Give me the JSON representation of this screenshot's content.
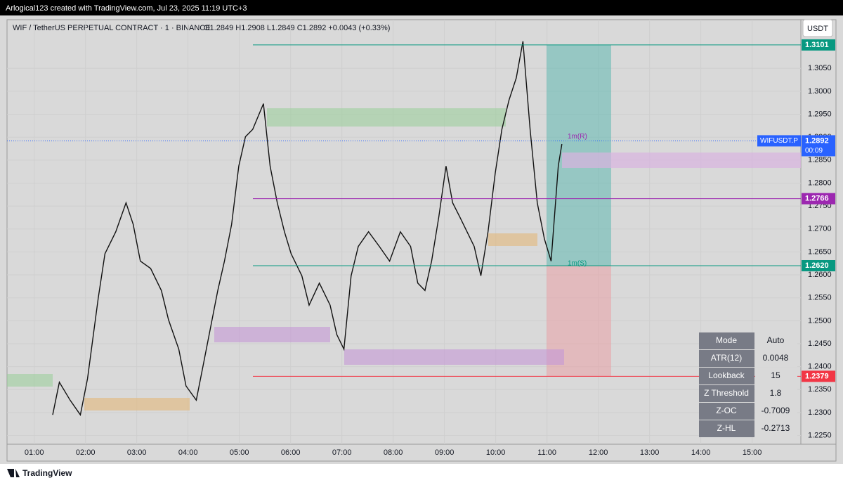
{
  "header": {
    "caption": "Arlogical123 created with TradingView.com, Jul 23, 2025 11:19 UTC+3"
  },
  "legend": {
    "symbol": "WIF / TetherUS PERPETUAL CONTRACT · 1 · BINANCE",
    "ohlc": "O1.2849 H1.2908 L1.2849 C1.2892 +0.0043 (+0.33%)"
  },
  "currency_button": "USDT",
  "chart_data": {
    "type": "line",
    "color": "#111111",
    "x": [
      1.36,
      1.49,
      1.7,
      1.9,
      2.04,
      2.25,
      2.38,
      2.59,
      2.79,
      2.93,
      3.07,
      3.27,
      3.48,
      3.62,
      3.82,
      3.96,
      4.16,
      4.3,
      4.44,
      4.58,
      4.71,
      4.85,
      4.99,
      5.12,
      5.26,
      5.47,
      5.6,
      5.74,
      5.88,
      6.01,
      6.22,
      6.36,
      6.56,
      6.77,
      6.9,
      7.04,
      7.18,
      7.32,
      7.52,
      7.73,
      7.93,
      8.14,
      8.34,
      8.48,
      8.62,
      8.75,
      8.89,
      9.03,
      9.16,
      9.3,
      9.44,
      9.58,
      9.71,
      9.85,
      9.99,
      10.12,
      10.26,
      10.4,
      10.53,
      10.67,
      10.81,
      10.95,
      11.08,
      11.22,
      11.29
    ],
    "values": [
      1.2295,
      1.2366,
      1.2327,
      1.2295,
      1.2374,
      1.255,
      1.2646,
      1.2694,
      1.2757,
      1.271,
      1.263,
      1.2614,
      1.2566,
      1.2502,
      1.2438,
      1.2358,
      1.2327,
      1.2406,
      1.2486,
      1.2566,
      1.263,
      1.271,
      1.2837,
      1.2901,
      1.2917,
      1.2973,
      1.2837,
      1.2757,
      1.2694,
      1.2646,
      1.2598,
      1.2534,
      1.2582,
      1.2534,
      1.247,
      1.2438,
      1.2598,
      1.2662,
      1.2694,
      1.2662,
      1.263,
      1.2694,
      1.2662,
      1.2582,
      1.2566,
      1.263,
      1.2726,
      1.2837,
      1.2757,
      1.2726,
      1.2694,
      1.2662,
      1.2598,
      1.2694,
      1.2821,
      1.2917,
      1.2981,
      1.3029,
      1.3109,
      1.2917,
      1.2757,
      1.2678,
      1.263,
      1.2837,
      1.2885
    ],
    "xlim": [
      0.47,
      15.95
    ],
    "ylim": [
      1.2231,
      1.3156
    ],
    "xticks": [
      {
        "value": 1,
        "label": "01:00"
      },
      {
        "value": 2,
        "label": "02:00"
      },
      {
        "value": 3,
        "label": "03:00"
      },
      {
        "value": 4,
        "label": "04:00"
      },
      {
        "value": 5,
        "label": "05:00"
      },
      {
        "value": 6,
        "label": "06:00"
      },
      {
        "value": 7,
        "label": "07:00"
      },
      {
        "value": 8,
        "label": "08:00"
      },
      {
        "value": 9,
        "label": "09:00"
      },
      {
        "value": 10,
        "label": "10:00"
      },
      {
        "value": 11,
        "label": "11:00"
      },
      {
        "value": 12,
        "label": "12:00"
      },
      {
        "value": 13,
        "label": "13:00"
      },
      {
        "value": 14,
        "label": "14:00"
      },
      {
        "value": 15,
        "label": "15:00"
      }
    ],
    "yticks": [
      {
        "value": 1.225,
        "label": "1.2250"
      },
      {
        "value": 1.23,
        "label": "1.2300"
      },
      {
        "value": 1.235,
        "label": "1.2350"
      },
      {
        "value": 1.24,
        "label": "1.2400"
      },
      {
        "value": 1.245,
        "label": "1.2450"
      },
      {
        "value": 1.25,
        "label": "1.2500"
      },
      {
        "value": 1.255,
        "label": "1.2550"
      },
      {
        "value": 1.26,
        "label": "1.2600"
      },
      {
        "value": 1.265,
        "label": "1.2650"
      },
      {
        "value": 1.27,
        "label": "1.2700"
      },
      {
        "value": 1.275,
        "label": "1.2750"
      },
      {
        "value": 1.28,
        "label": "1.2800"
      },
      {
        "value": 1.285,
        "label": "1.2850"
      },
      {
        "value": 1.29,
        "label": "1.2900"
      },
      {
        "value": 1.295,
        "label": "1.2950"
      },
      {
        "value": 1.3,
        "label": "1.3000"
      },
      {
        "value": 1.305,
        "label": "1.3050"
      }
    ],
    "grid": true,
    "price_lines": [
      {
        "value": 1.3101,
        "label": "1.3101",
        "color": "#089981"
      },
      {
        "value": 1.2766,
        "label": "1.2766",
        "color": "#9c27b0"
      },
      {
        "value": 1.262,
        "label": "1.2620",
        "color": "#089981"
      },
      {
        "value": 1.2379,
        "label": "1.2379",
        "color": "#f23645"
      }
    ],
    "last_price": {
      "value": 1.2892,
      "label": "1.2892",
      "symbol": "WIFUSDT.P",
      "countdown": "00:09",
      "color": "#2962ff"
    },
    "annotations": [
      "1m(R)",
      "1m(S)"
    ]
  },
  "table": {
    "rows": [
      [
        "Mode",
        "Auto"
      ],
      [
        "ATR(12)",
        "0.0048"
      ],
      [
        "Lookback",
        "15"
      ],
      [
        "Z Threshold",
        "1.8"
      ],
      [
        "Z-OC",
        "-0.7009"
      ],
      [
        "Z-HL",
        "-0.2713"
      ]
    ]
  },
  "footer": {
    "brand": "TradingView"
  }
}
